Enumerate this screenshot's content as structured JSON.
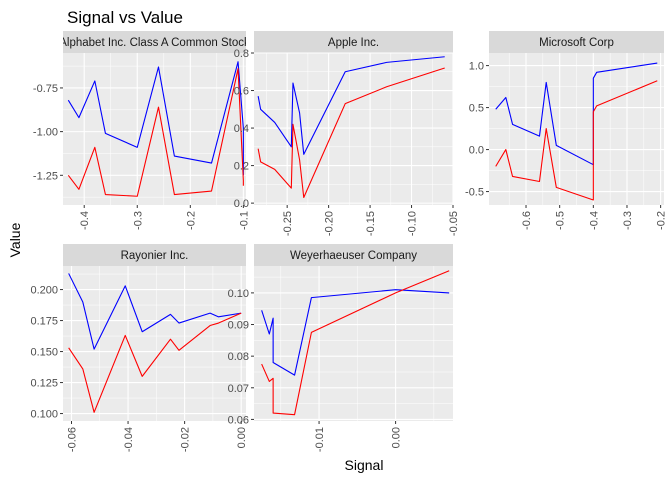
{
  "title": "Signal vs Value",
  "chart_data": {
    "type": "line",
    "title": "Signal vs Value",
    "xlabel": "Signal",
    "ylabel": "Value",
    "layout": "facet-wrap (3 columns), independent x and y scales",
    "grid": true,
    "series_colors": {
      "first": "#0000ff",
      "second": "#ff0000"
    },
    "panel_background": "#ebebeb",
    "strip_background": "#d9d9d9",
    "panels": [
      {
        "label": "Alphabet Inc. Class A Common Stock",
        "xlim": [
          -0.44,
          -0.095
        ],
        "ylim": [
          -1.42,
          -0.55
        ],
        "xticks": [
          "-0.4",
          "-0.3",
          "-0.2",
          "-0.1"
        ],
        "xtick_values": [
          -0.4,
          -0.3,
          -0.2,
          -0.1
        ],
        "yticks": [
          "-1.25",
          "-1.00",
          "-0.75"
        ],
        "ytick_values": [
          -1.25,
          -1.0,
          -0.75
        ],
        "series": [
          {
            "x": [
              -0.43,
              -0.41,
              -0.38,
              -0.36,
              -0.3,
              -0.26,
              -0.23,
              -0.16,
              -0.11,
              -0.1,
              -0.1
            ],
            "y": [
              -0.82,
              -0.92,
              -0.71,
              -1.01,
              -1.09,
              -0.63,
              -1.14,
              -1.18,
              -0.6,
              -0.98,
              -1.25
            ]
          },
          {
            "x": [
              -0.43,
              -0.41,
              -0.38,
              -0.36,
              -0.3,
              -0.26,
              -0.23,
              -0.16,
              -0.11,
              -0.1,
              -0.1
            ],
            "y": [
              -1.25,
              -1.33,
              -1.09,
              -1.36,
              -1.37,
              -0.86,
              -1.36,
              -1.34,
              -0.64,
              -1.28,
              -1.31
            ]
          }
        ]
      },
      {
        "label": "Apple Inc.",
        "xlim": [
          -0.29,
          -0.05
        ],
        "ylim": [
          -0.01,
          0.8
        ],
        "xticks": [
          "-0.25",
          "-0.20",
          "-0.15",
          "-0.10",
          "-0.05"
        ],
        "xtick_values": [
          -0.25,
          -0.2,
          -0.15,
          -0.1,
          -0.05
        ],
        "yticks": [
          "0.0",
          "0.2",
          "0.4",
          "0.6",
          "0.8"
        ],
        "ytick_values": [
          0.0,
          0.2,
          0.4,
          0.6,
          0.8
        ],
        "series": [
          {
            "x": [
              -0.285,
              -0.282,
              -0.265,
              -0.245,
              -0.243,
              -0.235,
              -0.23,
              -0.18,
              -0.13,
              -0.06
            ],
            "y": [
              0.57,
              0.5,
              0.43,
              0.3,
              0.64,
              0.48,
              0.26,
              0.7,
              0.75,
              0.78
            ]
          },
          {
            "x": [
              -0.285,
              -0.282,
              -0.265,
              -0.245,
              -0.243,
              -0.235,
              -0.23,
              -0.18,
              -0.13,
              -0.06
            ],
            "y": [
              0.29,
              0.22,
              0.18,
              0.08,
              0.42,
              0.23,
              0.03,
              0.53,
              0.62,
              0.72
            ]
          }
        ]
      },
      {
        "label": "Microsoft Corp",
        "xlim": [
          -0.71,
          -0.19
        ],
        "ylim": [
          -0.66,
          1.15
        ],
        "xticks": [
          "-0.6",
          "-0.5",
          "-0.4",
          "-0.3",
          "-0.2"
        ],
        "xtick_values": [
          -0.6,
          -0.5,
          -0.4,
          -0.3,
          -0.2
        ],
        "yticks": [
          "-0.5",
          "0.0",
          "0.5",
          "1.0"
        ],
        "ytick_values": [
          -0.5,
          0.0,
          0.5,
          1.0
        ],
        "series": [
          {
            "x": [
              -0.69,
              -0.66,
              -0.64,
              -0.56,
              -0.54,
              -0.51,
              -0.4,
              -0.4,
              -0.39,
              -0.21
            ],
            "y": [
              0.48,
              0.62,
              0.3,
              0.16,
              0.8,
              0.05,
              -0.18,
              0.85,
              0.92,
              1.03
            ]
          },
          {
            "x": [
              -0.69,
              -0.66,
              -0.64,
              -0.56,
              -0.54,
              -0.51,
              -0.4,
              -0.4,
              -0.39,
              -0.21
            ],
            "y": [
              -0.2,
              0.0,
              -0.32,
              -0.38,
              0.25,
              -0.45,
              -0.6,
              0.45,
              0.52,
              0.82
            ]
          }
        ]
      },
      {
        "label": "Rayonier Inc.",
        "xlim": [
          -0.063,
          0.0017
        ],
        "ylim": [
          0.094,
          0.219
        ],
        "xticks": [
          "-0.06",
          "-0.04",
          "-0.02",
          "0.00"
        ],
        "xtick_values": [
          -0.06,
          -0.04,
          -0.02,
          0.0
        ],
        "yticks": [
          "0.100",
          "0.125",
          "0.150",
          "0.175",
          "0.200"
        ],
        "ytick_values": [
          0.1,
          0.125,
          0.15,
          0.175,
          0.2
        ],
        "series": [
          {
            "x": [
              -0.061,
              -0.056,
              -0.052,
              -0.041,
              -0.035,
              -0.025,
              -0.022,
              -0.011,
              -0.008,
              0.0
            ],
            "y": [
              0.213,
              0.19,
              0.152,
              0.203,
              0.166,
              0.18,
              0.173,
              0.181,
              0.178,
              0.181
            ]
          },
          {
            "x": [
              -0.061,
              -0.056,
              -0.052,
              -0.041,
              -0.035,
              -0.025,
              -0.022,
              -0.011,
              -0.008,
              0.0
            ],
            "y": [
              0.153,
              0.136,
              0.101,
              0.163,
              0.13,
              0.16,
              0.151,
              0.171,
              0.173,
              0.181
            ]
          }
        ]
      },
      {
        "label": "Weyerhaeuser Company",
        "xlim": [
          -0.0185,
          0.0075
        ],
        "ylim": [
          0.0595,
          0.1085
        ],
        "xticks": [
          "-0.01",
          "0.00"
        ],
        "xtick_values": [
          -0.01,
          0.0
        ],
        "yticks": [
          "0.06",
          "0.07",
          "0.08",
          "0.09",
          "0.10"
        ],
        "ytick_values": [
          0.06,
          0.07,
          0.08,
          0.09,
          0.1
        ],
        "series": [
          {
            "x": [
              -0.0175,
              -0.0165,
              -0.016,
              -0.016,
              -0.0132,
              -0.011,
              0.0,
              0.007
            ],
            "y": [
              0.0945,
              0.087,
              0.092,
              0.078,
              0.074,
              0.0985,
              0.101,
              0.1
            ]
          },
          {
            "x": [
              -0.0175,
              -0.0165,
              -0.016,
              -0.016,
              -0.0132,
              -0.011,
              0.0,
              0.007
            ],
            "y": [
              0.0775,
              0.072,
              0.073,
              0.062,
              0.0615,
              0.0875,
              0.1,
              0.107
            ]
          }
        ]
      }
    ]
  }
}
